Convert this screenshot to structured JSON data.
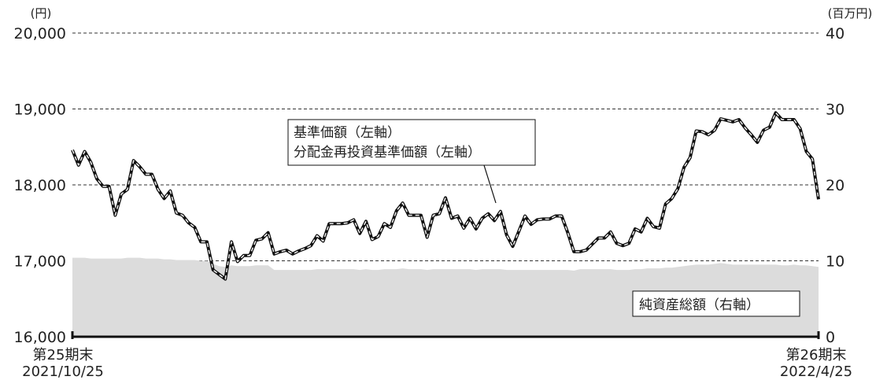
{
  "chart_data": {
    "type": "line",
    "left_axis": {
      "unit": "(円)",
      "ylim": [
        16000,
        20000
      ],
      "ticks": [
        {
          "value": 16000,
          "label": "16,000"
        },
        {
          "value": 17000,
          "label": "17,000"
        },
        {
          "value": 18000,
          "label": "18,000"
        },
        {
          "value": 19000,
          "label": "19,000"
        },
        {
          "value": 20000,
          "label": "20,000"
        }
      ]
    },
    "right_axis": {
      "unit": "(百万円)",
      "ylim": [
        0,
        40
      ],
      "ticks": [
        {
          "value": 0,
          "label": "0"
        },
        {
          "value": 10,
          "label": "10"
        },
        {
          "value": 20,
          "label": "20"
        },
        {
          "value": 30,
          "label": "30"
        },
        {
          "value": 40,
          "label": "40"
        }
      ]
    },
    "x_start": {
      "line1": "第25期末",
      "line2": "2021/10/25"
    },
    "x_end": {
      "line1": "第26期末",
      "line2": "2022/4/25"
    },
    "grid": true,
    "line_annotation": {
      "line1": "基準価額（左軸）",
      "line2": "分配金再投資基準価額（左軸）"
    },
    "area_annotation": "純資産総額（右軸）",
    "colors": {
      "nav_line": "#111111",
      "reinvest_line": "#ffffff",
      "area_fill": "#dcdcdc",
      "grid": "#333333"
    },
    "series": [
      {
        "name": "基準価額（左軸）",
        "axis": "left",
        "values": [
          18460,
          18260,
          18440,
          18300,
          18080,
          17980,
          17980,
          17600,
          17880,
          17940,
          18320,
          18240,
          18140,
          18140,
          17940,
          17820,
          17920,
          17630,
          17600,
          17500,
          17440,
          17250,
          17250,
          16880,
          16820,
          16760,
          17250,
          16990,
          17070,
          17070,
          17270,
          17290,
          17370,
          17090,
          17120,
          17140,
          17090,
          17130,
          17160,
          17200,
          17330,
          17260,
          17490,
          17490,
          17490,
          17500,
          17540,
          17360,
          17520,
          17280,
          17320,
          17490,
          17440,
          17660,
          17760,
          17600,
          17600,
          17600,
          17310,
          17600,
          17620,
          17830,
          17560,
          17590,
          17430,
          17560,
          17420,
          17560,
          17620,
          17530,
          17650,
          17340,
          17190,
          17390,
          17590,
          17480,
          17540,
          17550,
          17550,
          17590,
          17590,
          17370,
          17120,
          17120,
          17140,
          17220,
          17300,
          17300,
          17380,
          17230,
          17200,
          17230,
          17420,
          17380,
          17560,
          17450,
          17430,
          17750,
          17820,
          17950,
          18230,
          18360,
          18710,
          18700,
          18660,
          18720,
          18870,
          18850,
          18830,
          18860,
          18750,
          18660,
          18560,
          18720,
          18760,
          18950,
          18860,
          18860,
          18860,
          18740,
          18440,
          18340,
          17810
        ]
      },
      {
        "name": "純資産総額（右軸）",
        "axis": "right",
        "values": [
          10.4,
          10.4,
          10.4,
          10.3,
          10.3,
          10.3,
          10.3,
          10.3,
          10.3,
          10.4,
          10.4,
          10.4,
          10.3,
          10.3,
          10.3,
          10.2,
          10.2,
          10.1,
          10.1,
          10.1,
          10.1,
          10.0,
          10.0,
          9.6,
          9.3,
          9.2,
          9.4,
          9.3,
          9.3,
          9.3,
          9.4,
          9.4,
          9.4,
          8.8,
          8.8,
          8.8,
          8.8,
          8.8,
          8.8,
          8.8,
          8.9,
          8.9,
          8.9,
          8.9,
          8.9,
          8.9,
          8.9,
          8.8,
          8.9,
          8.8,
          8.8,
          8.9,
          8.9,
          8.9,
          9.0,
          8.9,
          8.9,
          8.9,
          8.8,
          8.9,
          8.9,
          8.9,
          8.9,
          8.9,
          8.9,
          8.9,
          8.8,
          8.9,
          8.9,
          8.9,
          8.9,
          8.8,
          8.8,
          8.8,
          8.8,
          8.8,
          8.8,
          8.8,
          8.8,
          8.8,
          8.8,
          8.8,
          8.7,
          8.9,
          8.9,
          8.9,
          8.9,
          8.9,
          8.9,
          8.8,
          8.8,
          8.8,
          8.9,
          8.9,
          9.0,
          9.0,
          9.0,
          9.1,
          9.1,
          9.2,
          9.3,
          9.4,
          9.5,
          9.5,
          9.5,
          9.6,
          9.7,
          9.6,
          9.5,
          9.5,
          9.5,
          9.5,
          9.5,
          9.5,
          9.5,
          9.5,
          9.4,
          9.4,
          9.5,
          9.4,
          9.4,
          9.3,
          9.2
        ]
      }
    ]
  }
}
